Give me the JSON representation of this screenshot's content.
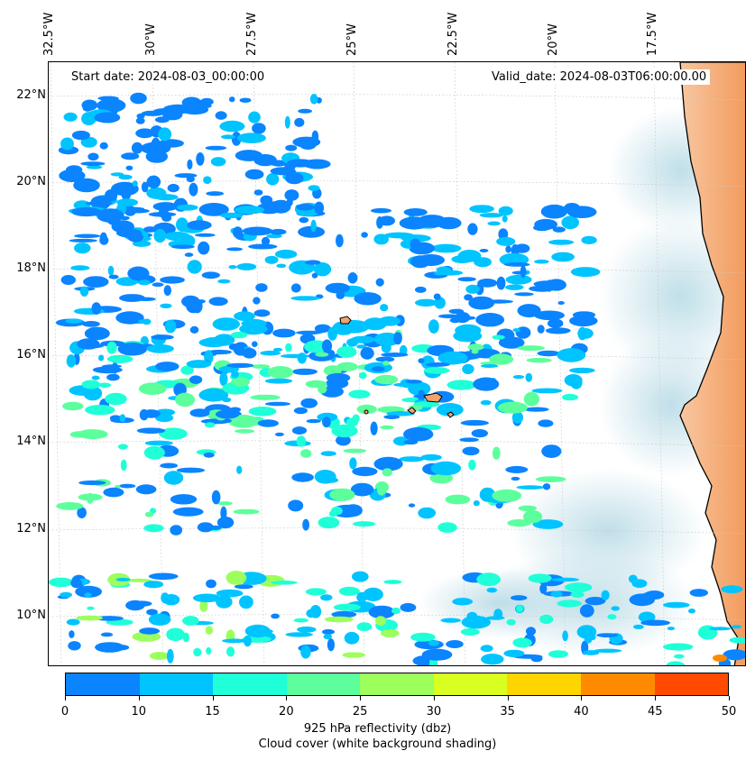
{
  "map": {
    "start_label": "Start date: 2024-08-03_00:00:00",
    "valid_label": "Valid_date: 2024-08-03T06:00:00.00",
    "lon_labels": [
      "32.5°W",
      "30°W",
      "27.5°W",
      "25°W",
      "22.5°W",
      "20°W",
      "17.5°W"
    ],
    "lat_labels": [
      "22°N",
      "20°N",
      "18°N",
      "16°N",
      "14°N",
      "12°N",
      "10°N"
    ],
    "land_color": "#f3a46b",
    "cloud_color": "#b9dbe6",
    "reflectivity_colors": [
      "#0a84ff",
      "#00c4ff",
      "#1fffd8",
      "#5cff9c",
      "#9cff5c",
      "#d8ff1f",
      "#ffd500",
      "#ff8a00",
      "#ff4a00"
    ]
  },
  "colorbar": {
    "ticks": [
      "0",
      "10",
      "15",
      "20",
      "25",
      "30",
      "35",
      "40",
      "45",
      "50"
    ],
    "title_line1": "925 hPa reflectivity (dbz)",
    "title_line2": "Cloud cover (white background shading)"
  }
}
